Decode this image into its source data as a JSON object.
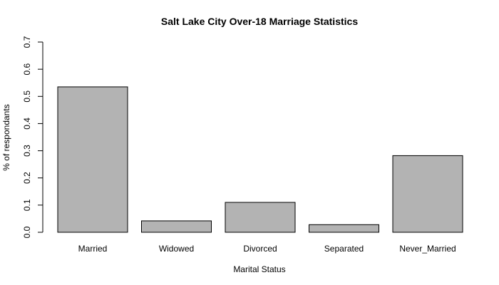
{
  "chart_data": {
    "type": "bar",
    "title": "Salt Lake City Over-18 Marriage Statistics",
    "xlabel": "Marital Status",
    "ylabel": "% of respondants",
    "categories": [
      "Married",
      "Widowed",
      "Divorced",
      "Separated",
      "Never_Married"
    ],
    "values": [
      0.535,
      0.042,
      0.11,
      0.028,
      0.282
    ],
    "ylim": [
      0,
      0.7
    ],
    "yticks": [
      0.0,
      0.1,
      0.2,
      0.3,
      0.4,
      0.5,
      0.6,
      0.7
    ],
    "ytick_labels": [
      "0.0",
      "0.1",
      "0.2",
      "0.3",
      "0.4",
      "0.5",
      "0.6",
      "0.7"
    ],
    "bar_color": "#b3b3b3",
    "grid": false,
    "legend": "none"
  }
}
